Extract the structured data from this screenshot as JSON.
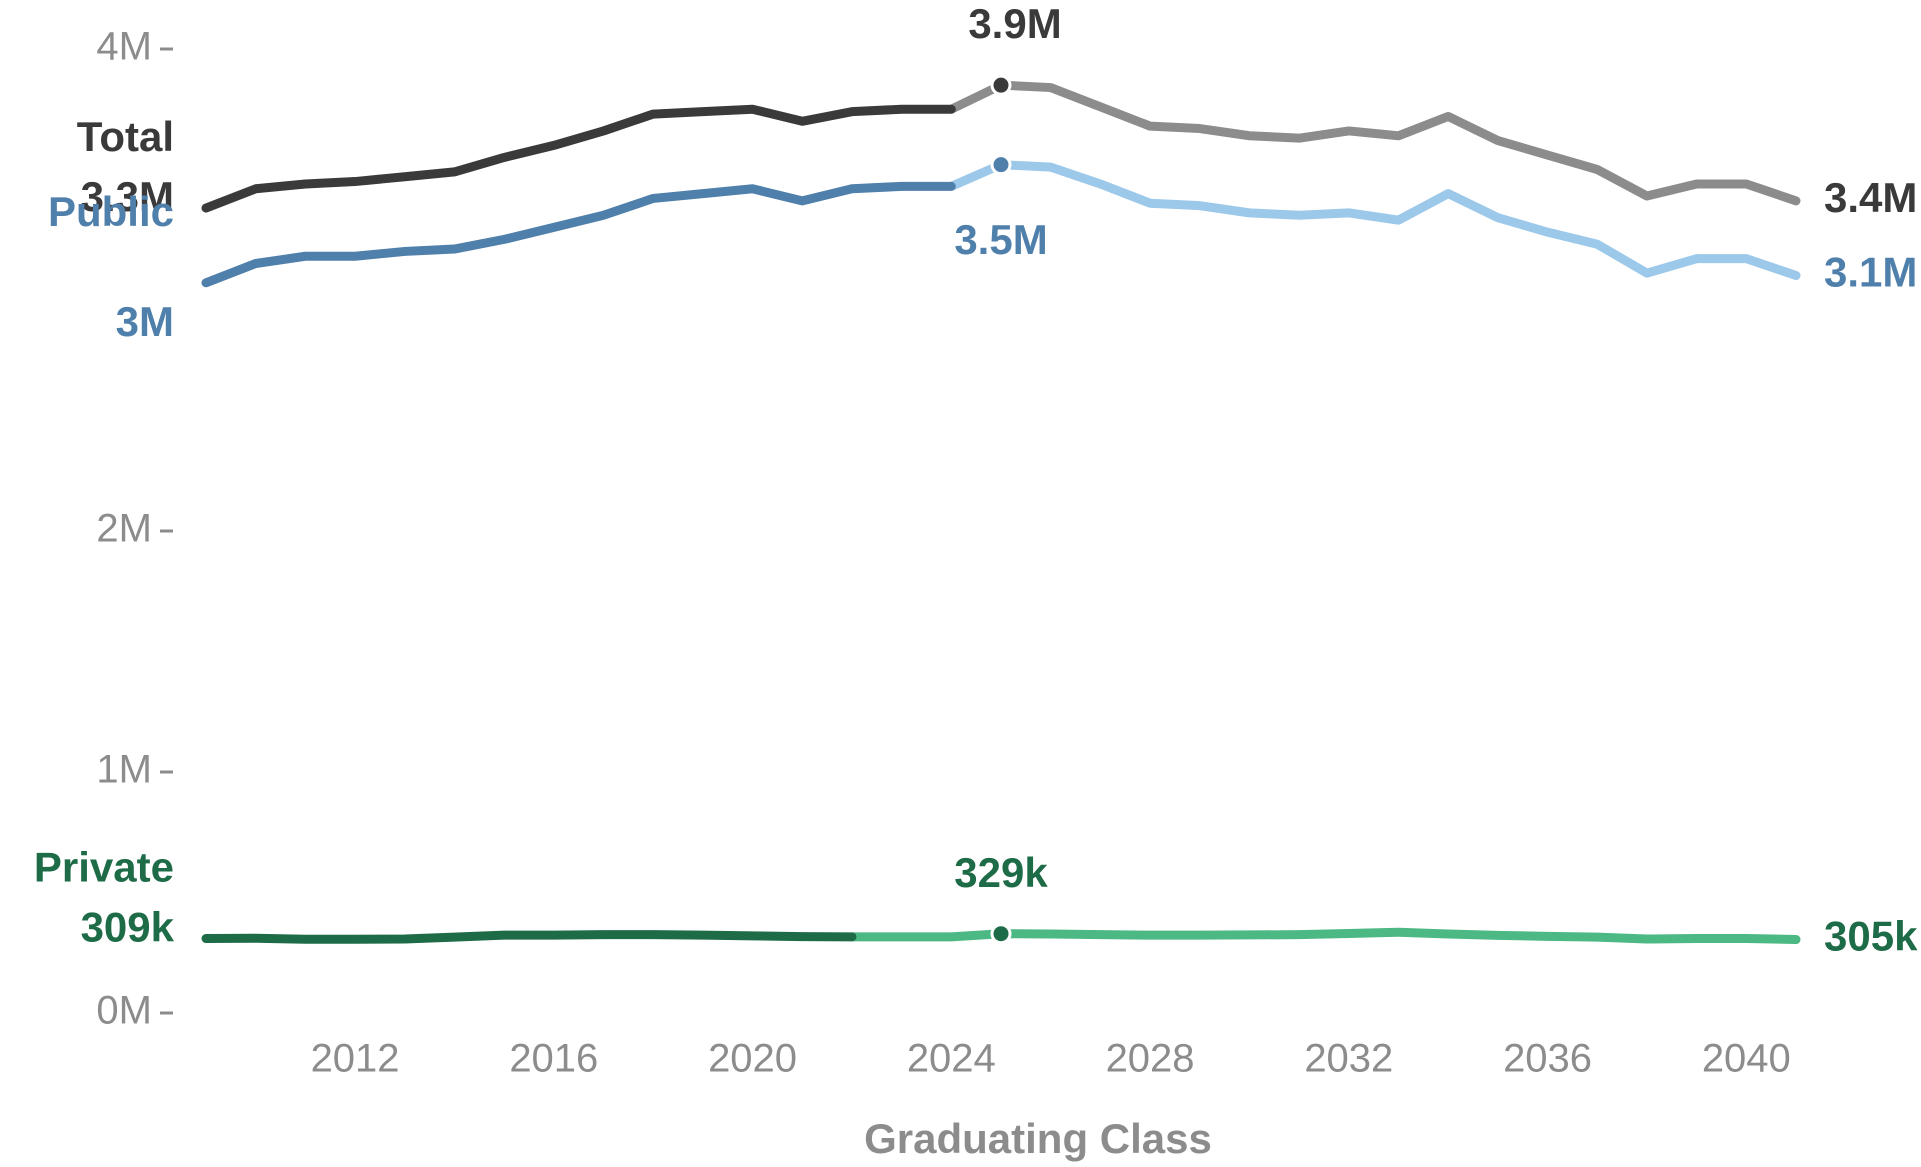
{
  "chart_data": {
    "type": "line",
    "x_label": "Graduating Class",
    "x": [
      2009,
      2010,
      2011,
      2012,
      2013,
      2014,
      2015,
      2016,
      2017,
      2018,
      2019,
      2020,
      2021,
      2022,
      2023,
      2024,
      2025,
      2026,
      2027,
      2028,
      2029,
      2030,
      2031,
      2032,
      2033,
      2034,
      2035,
      2036,
      2037,
      2038,
      2039,
      2040,
      2041
    ],
    "xlim": [
      2009,
      2041
    ],
    "xticks": [
      2012,
      2016,
      2020,
      2024,
      2028,
      2032,
      2036,
      2040
    ],
    "ylim": [
      0,
      4
    ],
    "yticks": [
      {
        "value": 0,
        "label": "0M"
      },
      {
        "value": 1,
        "label": "1M"
      },
      {
        "value": 2,
        "label": "2M"
      },
      {
        "value": 4,
        "label": "4M"
      }
    ],
    "series": [
      {
        "name": "Total",
        "color": "#3a3a3a",
        "projected_color": "#8c8c8c",
        "projected_from": 2024,
        "values": [
          3.34,
          3.42,
          3.44,
          3.45,
          3.47,
          3.49,
          3.55,
          3.6,
          3.66,
          3.73,
          3.74,
          3.75,
          3.7,
          3.74,
          3.75,
          3.75,
          3.85,
          3.84,
          3.76,
          3.68,
          3.67,
          3.64,
          3.63,
          3.66,
          3.64,
          3.72,
          3.62,
          3.56,
          3.5,
          3.39,
          3.44,
          3.44,
          3.37
        ],
        "value_labels": [
          "3.3M",
          null,
          null,
          null,
          null,
          null,
          null,
          null,
          null,
          null,
          null,
          null,
          null,
          null,
          null,
          null,
          "3.9M",
          null,
          null,
          null,
          null,
          null,
          null,
          null,
          null,
          null,
          null,
          null,
          null,
          null,
          null,
          null,
          "3.4M"
        ]
      },
      {
        "name": "Public",
        "color": "#4f7fab",
        "projected_color": "#9cc8ea",
        "projected_from": 2024,
        "values": [
          3.03,
          3.11,
          3.14,
          3.14,
          3.16,
          3.17,
          3.21,
          3.26,
          3.31,
          3.38,
          3.4,
          3.42,
          3.37,
          3.42,
          3.43,
          3.43,
          3.52,
          3.51,
          3.44,
          3.36,
          3.35,
          3.32,
          3.31,
          3.32,
          3.29,
          3.4,
          3.3,
          3.24,
          3.19,
          3.07,
          3.13,
          3.13,
          3.06
        ],
        "value_labels": [
          "3M",
          null,
          null,
          null,
          null,
          null,
          null,
          null,
          null,
          null,
          null,
          null,
          null,
          null,
          null,
          null,
          "3.5M",
          null,
          null,
          null,
          null,
          null,
          null,
          null,
          null,
          null,
          null,
          null,
          null,
          null,
          null,
          null,
          "3.1M"
        ]
      },
      {
        "name": "Private",
        "color": "#1e6b47",
        "projected_color": "#4cb884",
        "projected_from": 2022,
        "values": [
          0.309,
          0.31,
          0.306,
          0.306,
          0.307,
          0.315,
          0.323,
          0.323,
          0.325,
          0.325,
          0.323,
          0.32,
          0.317,
          0.316,
          0.316,
          0.316,
          0.329,
          0.328,
          0.325,
          0.323,
          0.323,
          0.324,
          0.325,
          0.33,
          0.335,
          0.328,
          0.322,
          0.318,
          0.315,
          0.307,
          0.309,
          0.309,
          0.305
        ],
        "value_labels": [
          "309k",
          null,
          null,
          null,
          null,
          null,
          null,
          null,
          null,
          null,
          null,
          null,
          null,
          null,
          null,
          null,
          "329k",
          null,
          null,
          null,
          null,
          null,
          null,
          null,
          null,
          null,
          null,
          null,
          null,
          null,
          null,
          null,
          "305k"
        ]
      }
    ]
  }
}
